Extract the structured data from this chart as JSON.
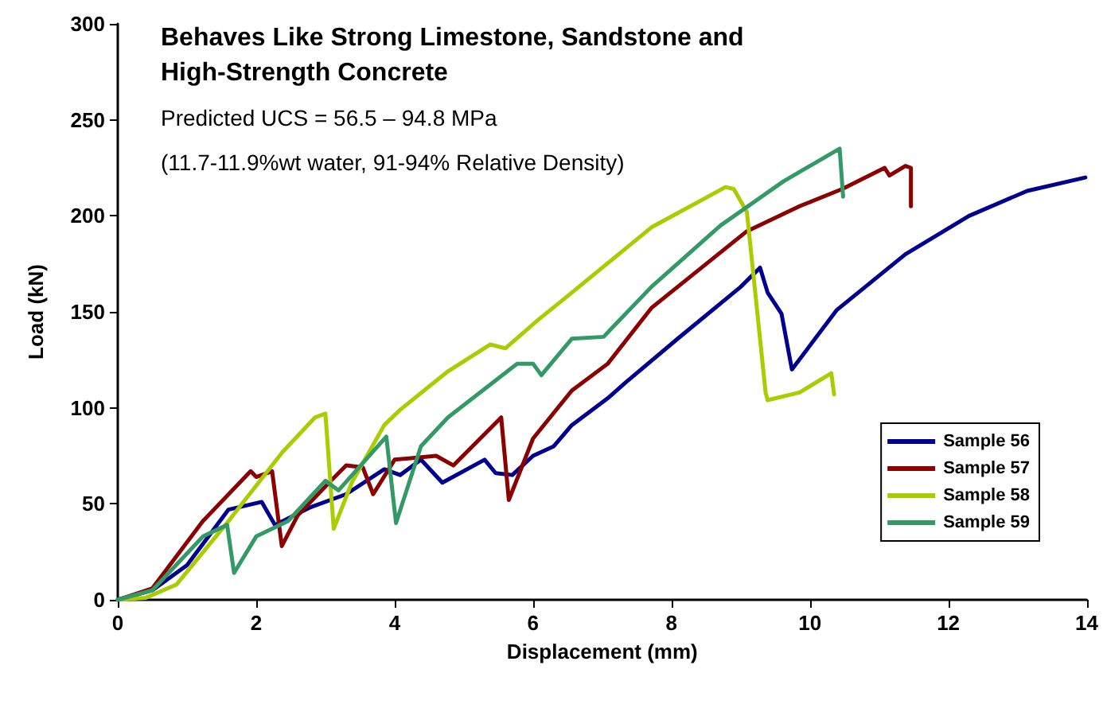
{
  "chart_data": {
    "type": "line",
    "title": "Behaves Like Strong Limestone, Sandstone and High-Strength Concrete",
    "subtitle": "Predicted UCS = 56.5 – 94.8 MPa",
    "annotations": [
      "(11.7-11.9%wt water, 91-94% Relative Density)"
    ],
    "xlabel": "Displacement (mm)",
    "ylabel": "Load (kN)",
    "xlim": [
      0,
      14
    ],
    "xticks": [
      0,
      2,
      4,
      6,
      8,
      10,
      12,
      14
    ],
    "ylim": [
      0,
      300
    ],
    "yticks": [
      0,
      50,
      100,
      150,
      200,
      250,
      300
    ],
    "grid": false,
    "legend": "bottom right",
    "marker": "none",
    "line_style": "solid",
    "series": [
      {
        "name": "Sample 56",
        "color": "#000090",
        "x": [
          0,
          0.5,
          1.0,
          1.6,
          2.08,
          2.27,
          2.77,
          3.3,
          3.85,
          4.08,
          4.38,
          4.69,
          5.3,
          5.46,
          5.7,
          6.0,
          6.3,
          6.56,
          7.08,
          7.33,
          8.09,
          9.0,
          9.28,
          9.39,
          9.59,
          9.74,
          10.39,
          11.38,
          12.3,
          13.14,
          13.98
        ],
        "values": [
          0,
          5,
          18,
          47,
          51,
          39,
          48,
          55,
          68,
          65,
          73,
          61,
          73,
          66,
          65,
          75,
          80,
          91,
          105,
          113,
          136,
          163,
          173,
          160,
          149,
          120,
          151,
          180,
          200,
          213,
          220
        ]
      },
      {
        "name": "Sample 57",
        "color": "#8b0000",
        "x": [
          0,
          0.5,
          1.23,
          1.92,
          2.0,
          2.23,
          2.37,
          2.6,
          3.08,
          3.3,
          3.54,
          3.69,
          4.0,
          4.6,
          4.85,
          5.54,
          5.65,
          6.0,
          6.56,
          7.08,
          7.71,
          9.09,
          9.85,
          10.47,
          11.08,
          11.15,
          11.38,
          11.46,
          11.46
        ],
        "values": [
          0,
          6,
          41,
          67,
          64,
          67,
          28,
          44,
          62,
          70,
          69,
          55,
          73,
          75,
          70,
          95,
          52,
          84,
          109,
          123,
          152,
          192,
          205,
          214,
          225,
          221,
          226,
          225,
          205
        ]
      },
      {
        "name": "Sample 58",
        "color": "#aacc00",
        "x": [
          0,
          0.4,
          0.85,
          1.6,
          2.38,
          2.85,
          3.0,
          3.12,
          3.38,
          3.85,
          4.08,
          4.77,
          5.38,
          5.6,
          6.08,
          6.56,
          7.71,
          8.63,
          8.78,
          8.9,
          9.09,
          9.36,
          9.39,
          9.85,
          10.31,
          10.35
        ],
        "values": [
          0,
          1,
          8,
          41,
          77,
          95,
          97,
          37,
          61,
          91,
          99,
          119,
          133,
          131,
          146,
          160,
          194,
          212,
          215,
          214,
          202,
          108,
          104,
          108,
          118,
          107
        ]
      },
      {
        "name": "Sample 59",
        "color": "#339966",
        "x": [
          0,
          0.5,
          1.23,
          1.58,
          1.68,
          2.0,
          2.46,
          3.0,
          3.19,
          3.88,
          4.02,
          4.38,
          4.77,
          5.77,
          6.0,
          6.12,
          6.56,
          7.02,
          7.71,
          8.71,
          9.62,
          10.43,
          10.48
        ],
        "values": [
          0,
          5,
          33,
          39,
          14,
          33,
          41,
          62,
          57,
          85,
          40,
          80,
          95,
          123,
          123,
          117,
          136,
          137,
          163,
          195,
          218,
          235,
          210
        ]
      }
    ]
  }
}
